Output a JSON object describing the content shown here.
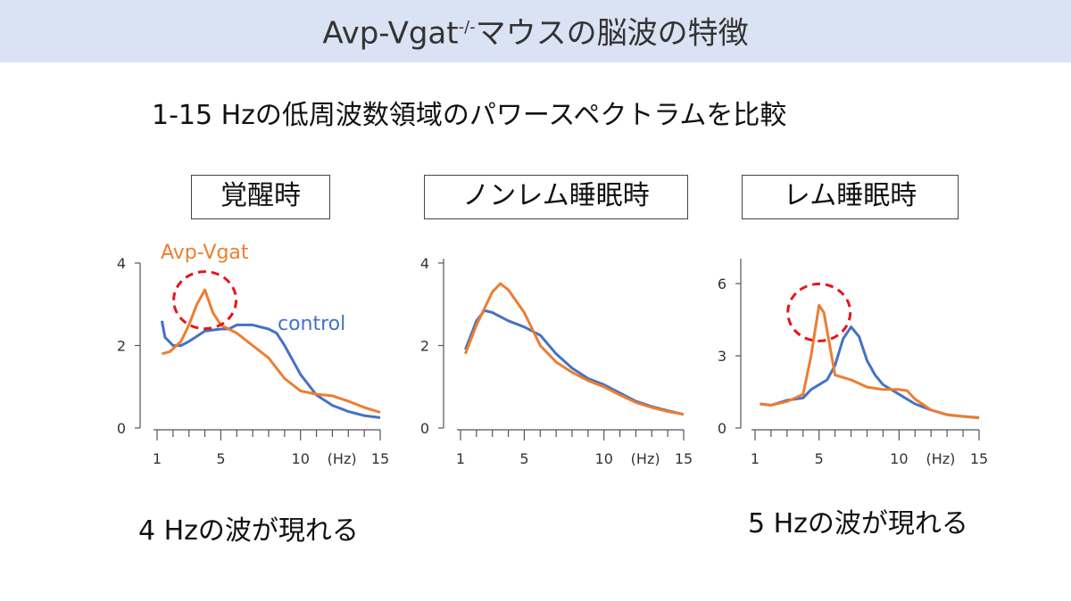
{
  "header": {
    "title_prefix": "Avp-Vgat",
    "title_sup": "-/-",
    "title_suffix": "マウスの脳波の特徴"
  },
  "subtitle": "1-15 Hzの低周波数領域のパワースペクトラムを比較",
  "notes": [
    "4 Hzの波が現れる",
    "5 Hzの波が現れる"
  ],
  "colors": {
    "avp": "#ed7d31",
    "control": "#4472c4",
    "highlight": "#e8141a",
    "header_bg": "#dae3f3"
  },
  "chart_data": [
    {
      "type": "line",
      "title": "覚醒時",
      "xlabel": "(Hz)",
      "xlim": [
        1,
        15
      ],
      "ylim": [
        0,
        4
      ],
      "xticks": [
        1,
        5,
        10,
        15
      ],
      "yticks": [
        0,
        2,
        4
      ],
      "legend": [
        {
          "name": "Avp-Vgat",
          "color": "#ed7d31"
        },
        {
          "name": "control",
          "color": "#4472c4"
        }
      ],
      "highlight": {
        "x": 4,
        "y": 3.1
      },
      "series": [
        {
          "name": "control",
          "x": [
            1.3,
            1.5,
            2,
            2.5,
            3,
            4,
            5,
            5.5,
            6,
            7,
            8,
            8.5,
            9,
            10,
            11,
            12,
            13,
            14,
            15
          ],
          "y": [
            2.6,
            2.2,
            2.0,
            2.0,
            2.1,
            2.35,
            2.4,
            2.4,
            2.5,
            2.5,
            2.4,
            2.3,
            2.0,
            1.3,
            0.8,
            0.55,
            0.4,
            0.3,
            0.25
          ]
        },
        {
          "name": "Avp-Vgat",
          "x": [
            1.3,
            1.8,
            2.5,
            3,
            3.5,
            4,
            4.5,
            5,
            6,
            7,
            8,
            9,
            10,
            11,
            12,
            13,
            14,
            15
          ],
          "y": [
            1.8,
            1.85,
            2.1,
            2.5,
            3.0,
            3.35,
            2.8,
            2.5,
            2.3,
            2.0,
            1.7,
            1.2,
            0.9,
            0.82,
            0.78,
            0.65,
            0.5,
            0.38
          ]
        }
      ]
    },
    {
      "type": "line",
      "title": "ノンレム睡眠時",
      "xlabel": "(Hz)",
      "xlim": [
        1,
        15
      ],
      "ylim": [
        0,
        4
      ],
      "xticks": [
        1,
        5,
        10,
        15
      ],
      "yticks": [
        0,
        2,
        4
      ],
      "series": [
        {
          "name": "control",
          "x": [
            1.3,
            2,
            2.5,
            3,
            4,
            5,
            6,
            7,
            8,
            9,
            10,
            11,
            12,
            13,
            14,
            15
          ],
          "y": [
            1.9,
            2.6,
            2.85,
            2.8,
            2.6,
            2.45,
            2.25,
            1.8,
            1.45,
            1.2,
            1.05,
            0.85,
            0.65,
            0.52,
            0.42,
            0.33
          ]
        },
        {
          "name": "Avp-Vgat",
          "x": [
            1.3,
            2,
            3,
            3.5,
            4,
            5,
            6,
            7,
            8,
            9,
            10,
            11,
            12,
            13,
            14,
            15
          ],
          "y": [
            1.8,
            2.5,
            3.3,
            3.5,
            3.35,
            2.8,
            2.0,
            1.6,
            1.35,
            1.15,
            1.0,
            0.8,
            0.62,
            0.5,
            0.4,
            0.33
          ]
        }
      ]
    },
    {
      "type": "line",
      "title": "レム睡眠時",
      "xlabel": "(Hz)",
      "xlim": [
        1,
        15
      ],
      "ylim": [
        0,
        7
      ],
      "xticks": [
        1,
        5,
        10,
        15
      ],
      "yticks": [
        0,
        3,
        6
      ],
      "highlight": {
        "x": 5,
        "y": 4.8
      },
      "series": [
        {
          "name": "control",
          "x": [
            1.3,
            2,
            3,
            4,
            4.5,
            5.5,
            6,
            6.5,
            7,
            7.5,
            8,
            8.5,
            9,
            10,
            11,
            12,
            13,
            14,
            15
          ],
          "y": [
            1.0,
            0.95,
            1.15,
            1.25,
            1.6,
            2.0,
            2.6,
            3.7,
            4.2,
            3.8,
            2.8,
            2.2,
            1.8,
            1.4,
            1.0,
            0.75,
            0.55,
            0.48,
            0.43
          ]
        },
        {
          "name": "Avp-Vgat",
          "x": [
            1.3,
            2,
            3,
            4,
            4.5,
            5,
            5.3,
            6,
            7,
            8,
            9,
            10,
            10.5,
            11,
            12,
            13,
            14,
            15
          ],
          "y": [
            1.0,
            0.95,
            1.1,
            1.4,
            3.0,
            5.1,
            4.8,
            2.2,
            2.0,
            1.7,
            1.6,
            1.6,
            1.55,
            1.2,
            0.75,
            0.55,
            0.48,
            0.42
          ]
        }
      ]
    }
  ]
}
